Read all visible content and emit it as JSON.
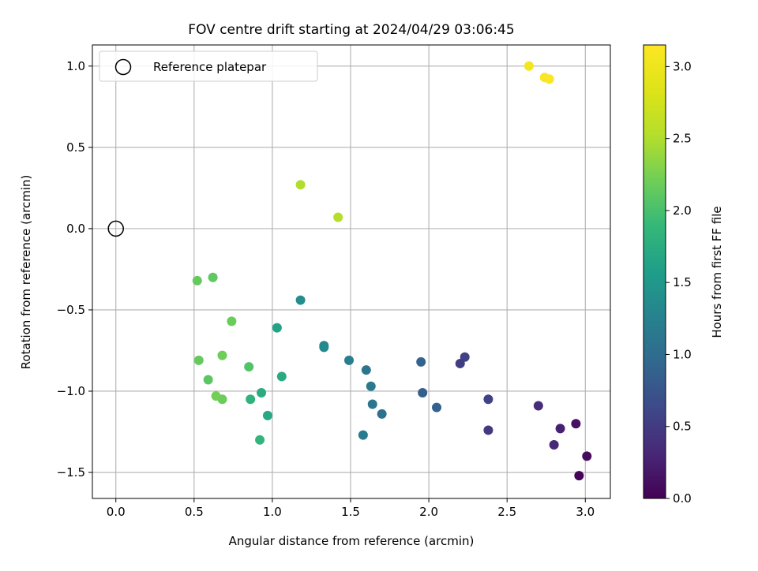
{
  "chart_data": {
    "type": "scatter",
    "title": "FOV centre drift starting at 2024/04/29 03:06:45",
    "xlabel": "Angular distance from reference (arcmin)",
    "ylabel": "Rotation from reference (arcmin)",
    "xlim": [
      -0.15,
      3.16
    ],
    "ylim": [
      -1.66,
      1.13
    ],
    "xticks": [
      "0.0",
      "0.5",
      "1.0",
      "1.5",
      "2.0",
      "2.5",
      "3.0"
    ],
    "yticks": [
      "1.0",
      "0.5",
      "0.0",
      "−0.5",
      "−1.0",
      "−1.5"
    ],
    "grid": true,
    "legend": {
      "position": "top-left",
      "label": "Reference platepar"
    },
    "reference_point": {
      "x": 0.0,
      "y": 0.0
    },
    "colorbar": {
      "label": "Hours from first FF file",
      "colormap": "viridis",
      "range": [
        0.0,
        3.15
      ],
      "ticks": [
        "0.0",
        "0.5",
        "1.0",
        "1.5",
        "2.0",
        "2.5",
        "3.0"
      ]
    },
    "points": [
      {
        "x": 2.96,
        "y": -1.52,
        "c": 0.03
      },
      {
        "x": 3.01,
        "y": -1.4,
        "c": 0.08
      },
      {
        "x": 2.94,
        "y": -1.2,
        "c": 0.13
      },
      {
        "x": 2.84,
        "y": -1.23,
        "c": 0.25
      },
      {
        "x": 2.8,
        "y": -1.33,
        "c": 0.32
      },
      {
        "x": 2.7,
        "y": -1.09,
        "c": 0.36
      },
      {
        "x": 2.38,
        "y": -1.24,
        "c": 0.48
      },
      {
        "x": 2.38,
        "y": -1.05,
        "c": 0.55
      },
      {
        "x": 2.23,
        "y": -0.79,
        "c": 0.55
      },
      {
        "x": 2.2,
        "y": -0.83,
        "c": 0.52
      },
      {
        "x": 2.05,
        "y": -1.1,
        "c": 0.87
      },
      {
        "x": 1.96,
        "y": -1.01,
        "c": 0.85
      },
      {
        "x": 1.95,
        "y": -0.82,
        "c": 0.9
      },
      {
        "x": 1.7,
        "y": -1.14,
        "c": 1.05
      },
      {
        "x": 1.64,
        "y": -1.08,
        "c": 1.1
      },
      {
        "x": 1.63,
        "y": -0.97,
        "c": 1.15
      },
      {
        "x": 1.6,
        "y": -0.87,
        "c": 1.12
      },
      {
        "x": 1.58,
        "y": -1.27,
        "c": 1.18
      },
      {
        "x": 1.49,
        "y": -0.81,
        "c": 1.2
      },
      {
        "x": 1.33,
        "y": -0.72,
        "c": 1.3
      },
      {
        "x": 1.33,
        "y": -0.73,
        "c": 1.35
      },
      {
        "x": 1.18,
        "y": -0.44,
        "c": 1.4
      },
      {
        "x": 1.06,
        "y": -0.91,
        "c": 1.72
      },
      {
        "x": 1.03,
        "y": -0.61,
        "c": 1.62
      },
      {
        "x": 0.97,
        "y": -1.15,
        "c": 1.7
      },
      {
        "x": 0.93,
        "y": -1.01,
        "c": 1.75
      },
      {
        "x": 0.92,
        "y": -1.3,
        "c": 1.85
      },
      {
        "x": 0.86,
        "y": -1.05,
        "c": 1.82
      },
      {
        "x": 0.85,
        "y": -0.85,
        "c": 2.05
      },
      {
        "x": 0.74,
        "y": -0.57,
        "c": 2.18
      },
      {
        "x": 0.68,
        "y": -0.78,
        "c": 2.2
      },
      {
        "x": 0.68,
        "y": -1.05,
        "c": 2.18
      },
      {
        "x": 0.64,
        "y": -1.03,
        "c": 2.22
      },
      {
        "x": 0.59,
        "y": -0.93,
        "c": 2.1
      },
      {
        "x": 0.53,
        "y": -0.81,
        "c": 2.15
      },
      {
        "x": 0.62,
        "y": -0.3,
        "c": 2.12
      },
      {
        "x": 0.52,
        "y": -0.32,
        "c": 2.15
      },
      {
        "x": 1.18,
        "y": 0.27,
        "c": 2.5
      },
      {
        "x": 1.42,
        "y": 0.07,
        "c": 2.52
      },
      {
        "x": 2.64,
        "y": 1.0,
        "c": 3.05
      },
      {
        "x": 2.74,
        "y": 0.93,
        "c": 3.1
      },
      {
        "x": 2.77,
        "y": 0.92,
        "c": 3.12
      }
    ]
  }
}
